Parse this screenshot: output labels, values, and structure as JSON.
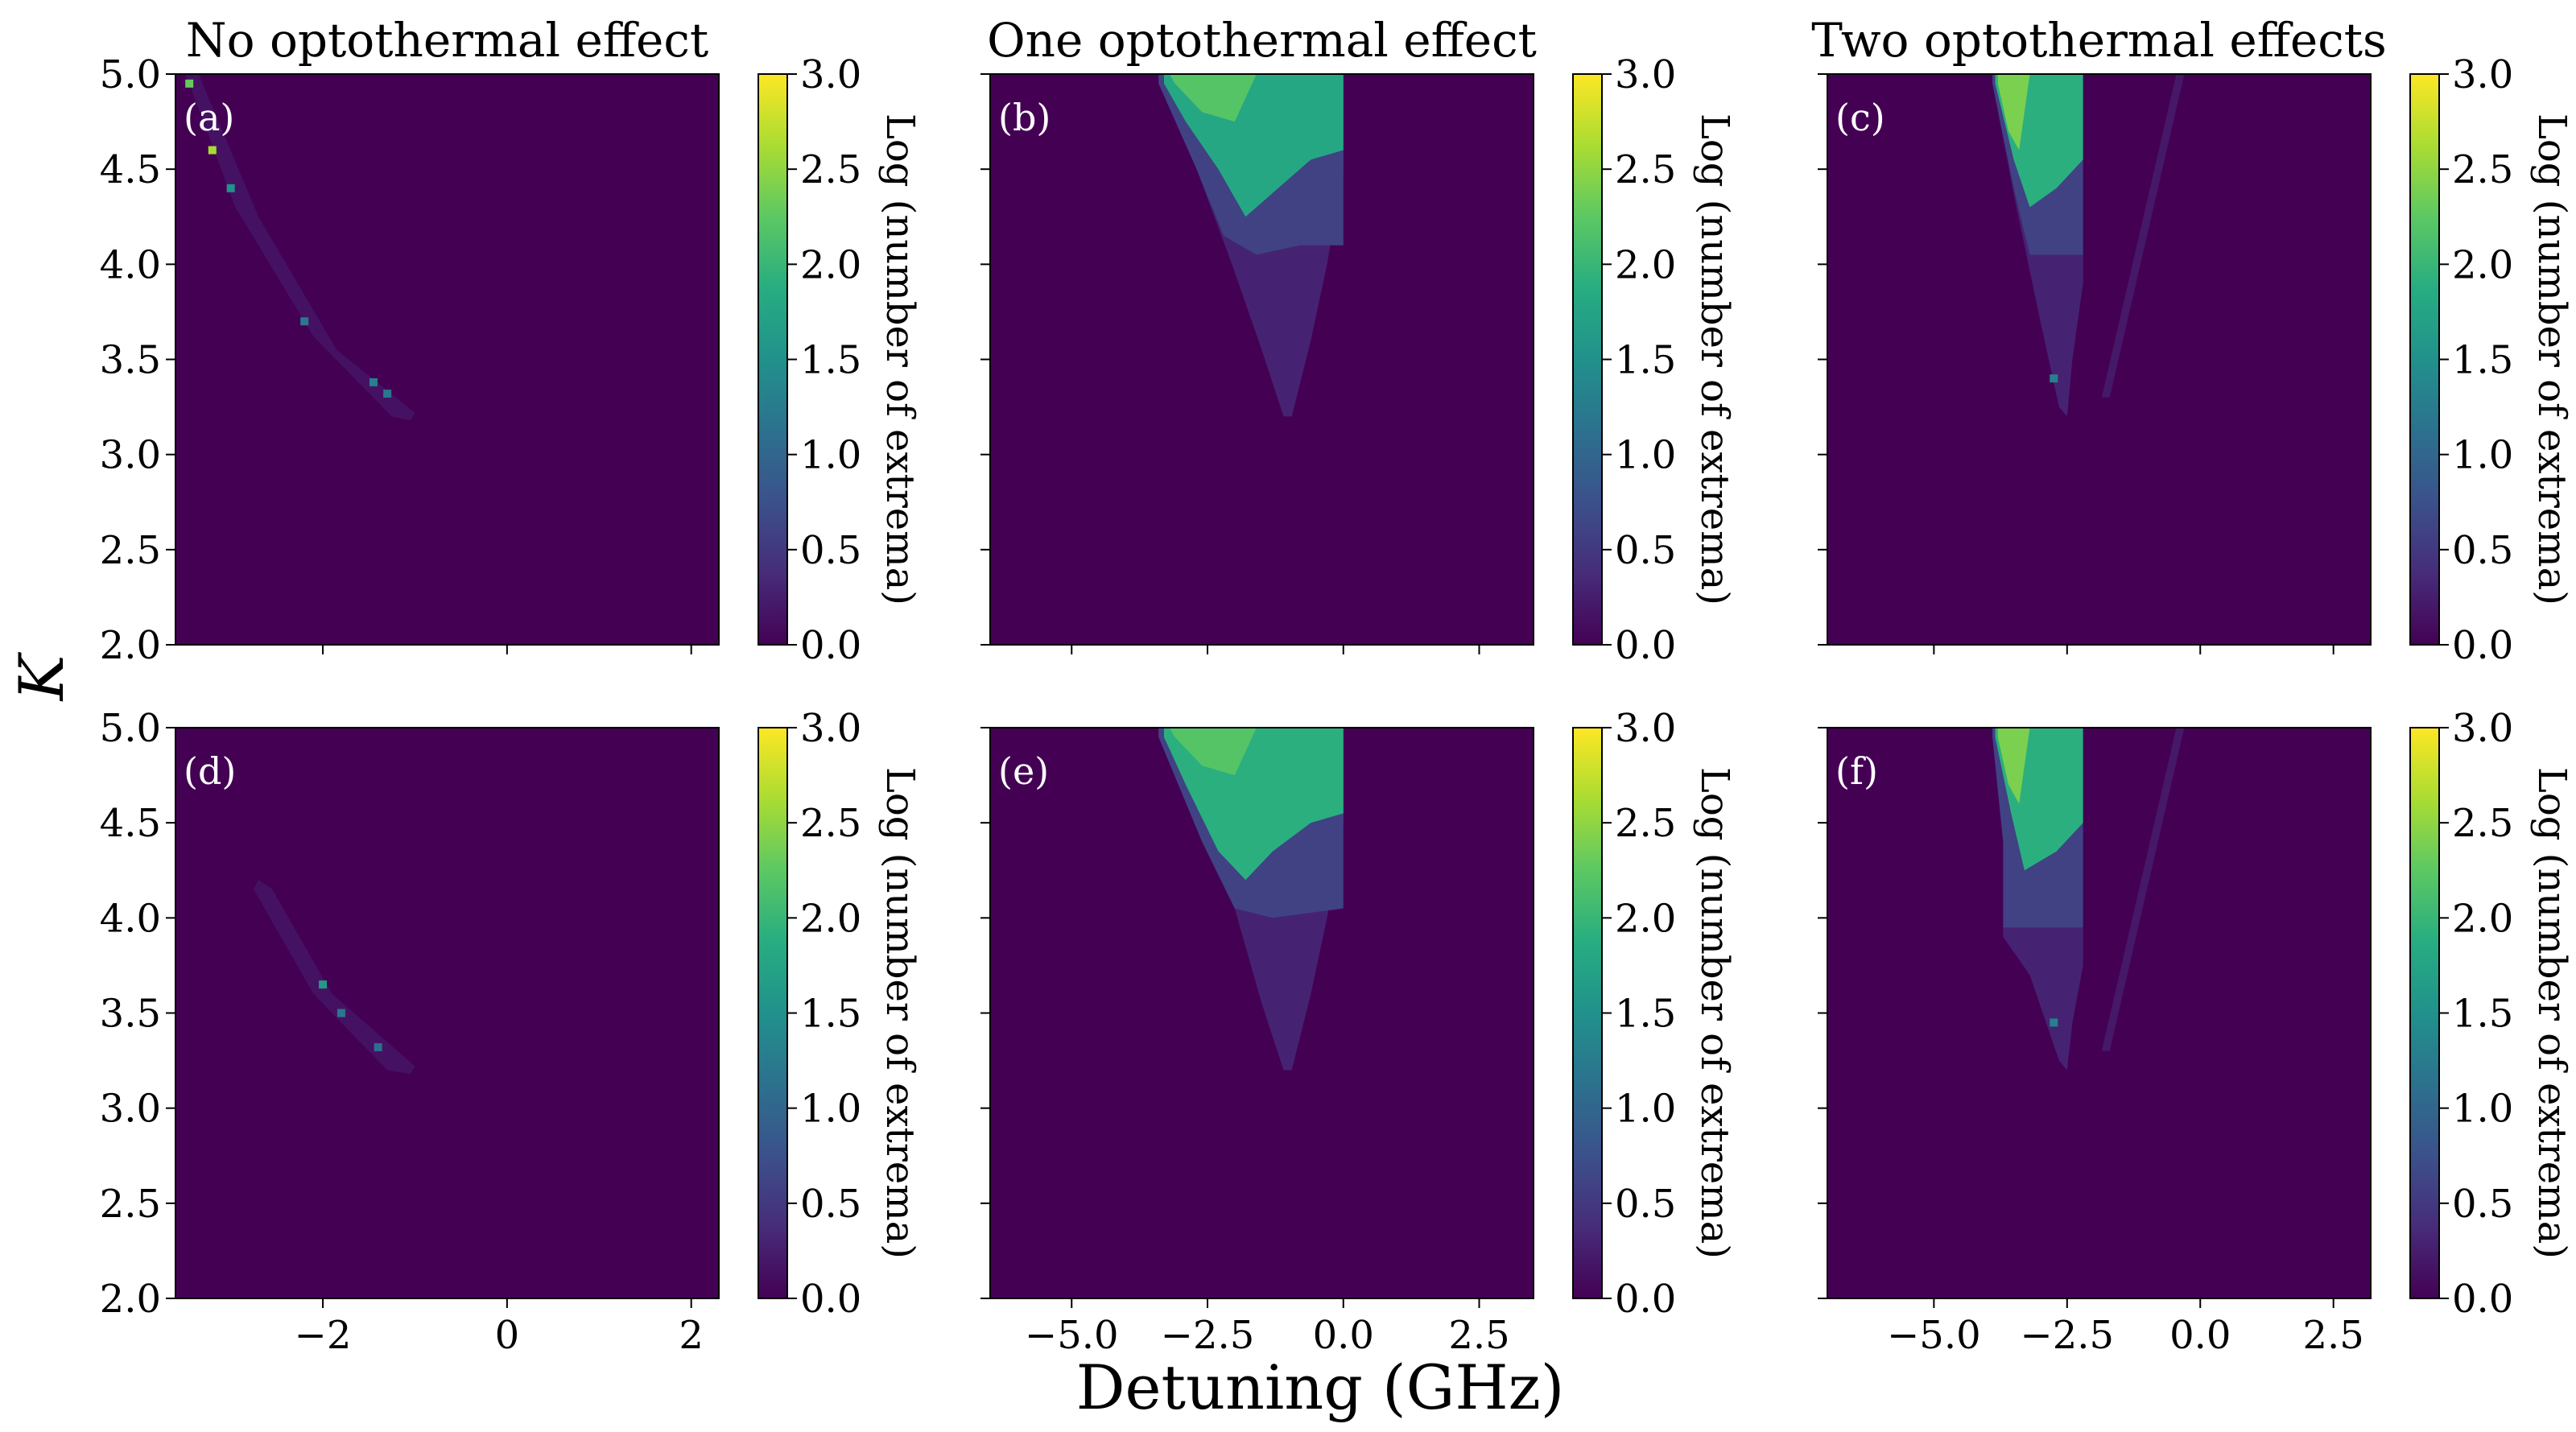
{
  "figure": {
    "xlabel": "Detuning (GHz)",
    "ylabel": "K"
  },
  "colormap": {
    "name": "viridis",
    "stops": [
      "#440154",
      "#472c7a",
      "#3b518b",
      "#2c718e",
      "#21918c",
      "#27ad81",
      "#5cc863",
      "#aadc32",
      "#fde725"
    ]
  },
  "chart_data": [
    {
      "type": "heatmap",
      "panel": "(a)",
      "title": "No optothermal effect",
      "xlim": [
        -3.6,
        2.3
      ],
      "ylim": [
        2.0,
        5.0
      ],
      "xticks": [
        -2,
        0,
        2
      ],
      "xtick_labels": [
        "−2",
        "0",
        "2"
      ],
      "show_xtick_labels": false,
      "yticks": [
        2.0,
        2.5,
        3.0,
        3.5,
        4.0,
        4.5,
        5.0
      ],
      "ytick_labels": [
        "2.0",
        "2.5",
        "3.0",
        "3.5",
        "4.0",
        "4.5",
        "5.0"
      ],
      "show_ytick_labels": true,
      "background_value": 0.0,
      "regions": [
        {
          "name": "oscillation-band",
          "value": 0.15,
          "polygon": [
            [
              -3.5,
              5.0
            ],
            [
              -3.35,
              5.0
            ],
            [
              -2.7,
              4.25
            ],
            [
              -1.85,
              3.55
            ],
            [
              -1.0,
              3.22
            ],
            [
              -1.05,
              3.18
            ],
            [
              -1.25,
              3.2
            ],
            [
              -2.1,
              3.62
            ],
            [
              -2.95,
              4.3
            ],
            [
              -3.45,
              4.95
            ]
          ]
        }
      ],
      "points": [
        {
          "x": -3.45,
          "y": 4.95,
          "value": 2.3
        },
        {
          "x": -3.2,
          "y": 4.6,
          "value": 2.6
        },
        {
          "x": -3.0,
          "y": 4.4,
          "value": 1.5
        },
        {
          "x": -2.2,
          "y": 3.7,
          "value": 1.2
        },
        {
          "x": -1.45,
          "y": 3.38,
          "value": 1.3
        },
        {
          "x": -1.3,
          "y": 3.32,
          "value": 1.2
        }
      ],
      "colorbar": {
        "label": "Log (number of extrema)",
        "range": [
          0.0,
          3.0
        ],
        "ticks": [
          "0.0",
          "0.5",
          "1.0",
          "1.5",
          "2.0",
          "2.5",
          "3.0"
        ]
      }
    },
    {
      "type": "heatmap",
      "panel": "(b)",
      "title": "One optothermal effect",
      "xlim": [
        -6.5,
        3.5
      ],
      "ylim": [
        2.0,
        5.0
      ],
      "xticks": [
        -5.0,
        -2.5,
        0.0,
        2.5
      ],
      "xtick_labels": [
        "−5.0",
        "−2.5",
        "0.0",
        "2.5"
      ],
      "show_xtick_labels": false,
      "yticks": [
        2.0,
        2.5,
        3.0,
        3.5,
        4.0,
        4.5,
        5.0
      ],
      "ytick_labels": [
        "2.0",
        "2.5",
        "3.0",
        "3.5",
        "4.0",
        "4.5",
        "5.0"
      ],
      "show_ytick_labels": false,
      "background_value": 0.0,
      "regions": [
        {
          "name": "outer-region",
          "value": 0.3,
          "polygon": [
            [
              -3.4,
              5.0
            ],
            [
              0.0,
              5.0
            ],
            [
              0.0,
              4.5
            ],
            [
              -0.3,
              4.0
            ],
            [
              -0.6,
              3.6
            ],
            [
              -0.95,
              3.2
            ],
            [
              -1.1,
              3.2
            ],
            [
              -1.5,
              3.55
            ],
            [
              -2.05,
              4.0
            ],
            [
              -2.7,
              4.5
            ],
            [
              -3.4,
              4.95
            ]
          ]
        },
        {
          "name": "mid-region",
          "value": 0.6,
          "polygon": [
            [
              -3.4,
              5.0
            ],
            [
              0.0,
              5.0
            ],
            [
              0.0,
              4.1
            ],
            [
              -0.8,
              4.1
            ],
            [
              -1.6,
              4.05
            ],
            [
              -2.2,
              4.15
            ],
            [
              -2.7,
              4.5
            ],
            [
              -3.4,
              4.95
            ]
          ]
        },
        {
          "name": "high-region",
          "value": 1.8,
          "polygon": [
            [
              -3.3,
              5.0
            ],
            [
              0.0,
              5.0
            ],
            [
              0.0,
              4.6
            ],
            [
              -0.6,
              4.55
            ],
            [
              -1.2,
              4.4
            ],
            [
              -1.8,
              4.25
            ],
            [
              -2.3,
              4.5
            ],
            [
              -2.9,
              4.75
            ],
            [
              -3.3,
              4.95
            ]
          ]
        },
        {
          "name": "peak-region",
          "value": 2.2,
          "polygon": [
            [
              -3.2,
              5.0
            ],
            [
              -1.6,
              5.0
            ],
            [
              -2.0,
              4.75
            ],
            [
              -2.6,
              4.8
            ],
            [
              -3.1,
              4.95
            ]
          ]
        }
      ],
      "points": [],
      "colorbar": {
        "label": "Log (number of extrema)",
        "range": [
          0.0,
          3.0
        ],
        "ticks": [
          "0.0",
          "0.5",
          "1.0",
          "1.5",
          "2.0",
          "2.5",
          "3.0"
        ]
      }
    },
    {
      "type": "heatmap",
      "panel": "(c)",
      "title": "Two optothermal effects",
      "xlim": [
        -7.0,
        3.2
      ],
      "ylim": [
        2.0,
        5.0
      ],
      "xticks": [
        -5.0,
        -2.5,
        0.0,
        2.5
      ],
      "xtick_labels": [
        "−5.0",
        "−2.5",
        "0.0",
        "2.5"
      ],
      "show_xtick_labels": false,
      "yticks": [
        2.0,
        2.5,
        3.0,
        3.5,
        4.0,
        4.5,
        5.0
      ],
      "ytick_labels": [
        "2.0",
        "2.5",
        "3.0",
        "3.5",
        "4.0",
        "4.5",
        "5.0"
      ],
      "show_ytick_labels": false,
      "background_value": 0.0,
      "regions": [
        {
          "name": "outer-region",
          "value": 0.3,
          "polygon": [
            [
              -3.9,
              5.0
            ],
            [
              -2.2,
              5.0
            ],
            [
              -2.2,
              3.9
            ],
            [
              -2.4,
              3.5
            ],
            [
              -2.5,
              3.2
            ],
            [
              -2.65,
              3.25
            ],
            [
              -3.0,
              3.7
            ],
            [
              -3.45,
              4.3
            ],
            [
              -3.9,
              4.95
            ]
          ]
        },
        {
          "name": "mid-region",
          "value": 0.6,
          "polygon": [
            [
              -3.9,
              5.0
            ],
            [
              -2.2,
              5.0
            ],
            [
              -2.2,
              4.05
            ],
            [
              -3.2,
              4.05
            ],
            [
              -3.5,
              4.4
            ],
            [
              -3.9,
              4.95
            ]
          ]
        },
        {
          "name": "high-region",
          "value": 1.9,
          "polygon": [
            [
              -3.85,
              5.0
            ],
            [
              -2.2,
              5.0
            ],
            [
              -2.2,
              4.55
            ],
            [
              -2.7,
              4.4
            ],
            [
              -3.2,
              4.3
            ],
            [
              -3.5,
              4.55
            ],
            [
              -3.85,
              4.95
            ]
          ]
        },
        {
          "name": "peak-region",
          "value": 2.4,
          "polygon": [
            [
              -3.8,
              5.0
            ],
            [
              -3.2,
              5.0
            ],
            [
              -3.4,
              4.6
            ],
            [
              -3.6,
              4.7
            ],
            [
              -3.8,
              4.95
            ]
          ]
        },
        {
          "name": "right-sliver",
          "value": 0.2,
          "polygon": [
            [
              -0.45,
              5.0
            ],
            [
              -0.3,
              5.0
            ],
            [
              -1.7,
              3.3
            ],
            [
              -1.85,
              3.3
            ]
          ]
        }
      ],
      "points": [
        {
          "x": -2.75,
          "y": 3.4,
          "value": 1.3
        }
      ],
      "colorbar": {
        "label": "Log (number of extrema)",
        "range": [
          0.0,
          3.0
        ],
        "ticks": [
          "0.0",
          "0.5",
          "1.0",
          "1.5",
          "2.0",
          "2.5",
          "3.0"
        ]
      }
    },
    {
      "type": "heatmap",
      "panel": "(d)",
      "xlim": [
        -3.6,
        2.3
      ],
      "ylim": [
        2.0,
        5.0
      ],
      "xticks": [
        -2,
        0,
        2
      ],
      "xtick_labels": [
        "−2",
        "0",
        "2"
      ],
      "show_xtick_labels": true,
      "yticks": [
        2.0,
        2.5,
        3.0,
        3.5,
        4.0,
        4.5,
        5.0
      ],
      "ytick_labels": [
        "2.0",
        "2.5",
        "3.0",
        "3.5",
        "4.0",
        "4.5",
        "5.0"
      ],
      "show_ytick_labels": true,
      "background_value": 0.0,
      "regions": [
        {
          "name": "oscillation-band",
          "value": 0.15,
          "polygon": [
            [
              -2.7,
              4.2
            ],
            [
              -2.55,
              4.15
            ],
            [
              -1.9,
              3.6
            ],
            [
              -1.0,
              3.22
            ],
            [
              -1.05,
              3.18
            ],
            [
              -1.3,
              3.2
            ],
            [
              -2.1,
              3.6
            ],
            [
              -2.75,
              4.15
            ]
          ]
        }
      ],
      "points": [
        {
          "x": -2.0,
          "y": 3.65,
          "value": 1.6
        },
        {
          "x": -1.8,
          "y": 3.5,
          "value": 1.2
        },
        {
          "x": -1.4,
          "y": 3.32,
          "value": 1.1
        }
      ],
      "colorbar": {
        "label": "Log (number of extrema)",
        "range": [
          0.0,
          3.0
        ],
        "ticks": [
          "0.0",
          "0.5",
          "1.0",
          "1.5",
          "2.0",
          "2.5",
          "3.0"
        ]
      }
    },
    {
      "type": "heatmap",
      "panel": "(e)",
      "xlim": [
        -6.5,
        3.5
      ],
      "ylim": [
        2.0,
        5.0
      ],
      "xticks": [
        -5.0,
        -2.5,
        0.0,
        2.5
      ],
      "xtick_labels": [
        "−5.0",
        "−2.5",
        "0.0",
        "2.5"
      ],
      "show_xtick_labels": true,
      "yticks": [
        2.0,
        2.5,
        3.0,
        3.5,
        4.0,
        4.5,
        5.0
      ],
      "ytick_labels": [
        "2.0",
        "2.5",
        "3.0",
        "3.5",
        "4.0",
        "4.5",
        "5.0"
      ],
      "show_ytick_labels": false,
      "background_value": 0.0,
      "regions": [
        {
          "name": "outer-region",
          "value": 0.3,
          "polygon": [
            [
              -3.4,
              5.0
            ],
            [
              0.0,
              5.0
            ],
            [
              0.0,
              4.5
            ],
            [
              -0.3,
              4.0
            ],
            [
              -0.6,
              3.6
            ],
            [
              -0.95,
              3.2
            ],
            [
              -1.1,
              3.2
            ],
            [
              -1.5,
              3.55
            ],
            [
              -2.0,
              4.05
            ],
            [
              -2.6,
              4.4
            ],
            [
              -3.4,
              4.95
            ]
          ]
        },
        {
          "name": "mid-region",
          "value": 0.6,
          "polygon": [
            [
              -3.4,
              5.0
            ],
            [
              0.0,
              5.0
            ],
            [
              0.0,
              4.05
            ],
            [
              -1.3,
              4.0
            ],
            [
              -2.0,
              4.05
            ],
            [
              -2.6,
              4.4
            ],
            [
              -3.4,
              4.95
            ]
          ]
        },
        {
          "name": "high-region",
          "value": 1.9,
          "polygon": [
            [
              -3.3,
              5.0
            ],
            [
              0.0,
              5.0
            ],
            [
              0.0,
              4.55
            ],
            [
              -0.6,
              4.5
            ],
            [
              -1.3,
              4.35
            ],
            [
              -1.8,
              4.2
            ],
            [
              -2.3,
              4.35
            ],
            [
              -2.9,
              4.7
            ],
            [
              -3.3,
              4.95
            ]
          ]
        },
        {
          "name": "peak-region",
          "value": 2.2,
          "polygon": [
            [
              -3.2,
              5.0
            ],
            [
              -1.6,
              5.0
            ],
            [
              -2.0,
              4.75
            ],
            [
              -2.6,
              4.8
            ],
            [
              -3.1,
              4.95
            ]
          ]
        }
      ],
      "points": [],
      "colorbar": {
        "label": "Log (number of extrema)",
        "range": [
          0.0,
          3.0
        ],
        "ticks": [
          "0.0",
          "0.5",
          "1.0",
          "1.5",
          "2.0",
          "2.5",
          "3.0"
        ]
      }
    },
    {
      "type": "heatmap",
      "panel": "(f)",
      "xlim": [
        -7.0,
        3.2
      ],
      "ylim": [
        2.0,
        5.0
      ],
      "xticks": [
        -5.0,
        -2.5,
        0.0,
        2.5
      ],
      "xtick_labels": [
        "−5.0",
        "−2.5",
        "0.0",
        "2.5"
      ],
      "show_xtick_labels": true,
      "yticks": [
        2.0,
        2.5,
        3.0,
        3.5,
        4.0,
        4.5,
        5.0
      ],
      "ytick_labels": [
        "2.0",
        "2.5",
        "3.0",
        "3.5",
        "4.0",
        "4.5",
        "5.0"
      ],
      "show_ytick_labels": false,
      "background_value": 0.0,
      "regions": [
        {
          "name": "outer-region",
          "value": 0.3,
          "polygon": [
            [
              -3.9,
              5.0
            ],
            [
              -2.2,
              5.0
            ],
            [
              -2.2,
              3.75
            ],
            [
              -2.4,
              3.45
            ],
            [
              -2.5,
              3.2
            ],
            [
              -2.65,
              3.25
            ],
            [
              -3.2,
              3.7
            ],
            [
              -3.7,
              3.9
            ],
            [
              -3.7,
              4.4
            ],
            [
              -3.9,
              4.95
            ]
          ]
        },
        {
          "name": "mid-region",
          "value": 0.6,
          "polygon": [
            [
              -3.9,
              5.0
            ],
            [
              -2.2,
              5.0
            ],
            [
              -2.2,
              3.95
            ],
            [
              -3.7,
              3.95
            ],
            [
              -3.7,
              4.4
            ],
            [
              -3.9,
              4.95
            ]
          ]
        },
        {
          "name": "high-region",
          "value": 1.9,
          "polygon": [
            [
              -3.85,
              5.0
            ],
            [
              -2.2,
              5.0
            ],
            [
              -2.2,
              4.5
            ],
            [
              -2.7,
              4.35
            ],
            [
              -3.3,
              4.25
            ],
            [
              -3.55,
              4.55
            ],
            [
              -3.85,
              4.95
            ]
          ]
        },
        {
          "name": "peak-region",
          "value": 2.4,
          "polygon": [
            [
              -3.8,
              5.0
            ],
            [
              -3.2,
              5.0
            ],
            [
              -3.4,
              4.6
            ],
            [
              -3.6,
              4.7
            ],
            [
              -3.8,
              4.95
            ]
          ]
        },
        {
          "name": "right-sliver",
          "value": 0.2,
          "polygon": [
            [
              -0.45,
              5.0
            ],
            [
              -0.3,
              5.0
            ],
            [
              -1.7,
              3.3
            ],
            [
              -1.85,
              3.3
            ]
          ]
        }
      ],
      "points": [
        {
          "x": -2.75,
          "y": 3.45,
          "value": 1.3
        }
      ],
      "colorbar": {
        "label": "Log (number of extrema)",
        "range": [
          0.0,
          3.0
        ],
        "ticks": [
          "0.0",
          "0.5",
          "1.0",
          "1.5",
          "2.0",
          "2.5",
          "3.0"
        ]
      }
    }
  ]
}
